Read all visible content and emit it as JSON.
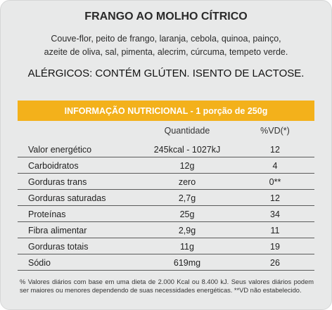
{
  "title": "FRANGO AO MOLHO CÍTRICO",
  "ingredients": [
    "Couve-flor, peito de frango, laranja, cebola, quinoa, painço,",
    "azeite de oliva, sal, pimenta, alecrim, cúrcuma, tempeto verde."
  ],
  "allergens": "ALÉRGICOS: CONTÉM GLÚTEN. ISENTO DE LACTOSE.",
  "nutrition": {
    "header": "INFORMAÇÃO NUTRICIONAL - 1 porção de 250g",
    "col_quantity": "Quantidade",
    "col_vd": "%VD(*)",
    "rows": [
      {
        "name": "Valor energético",
        "quantity": "245kcal - 1027kJ",
        "vd": "12"
      },
      {
        "name": "Carboidratos",
        "quantity": "12g",
        "vd": "4"
      },
      {
        "name": "Gorduras trans",
        "quantity": "zero",
        "vd": "0**"
      },
      {
        "name": "Gorduras saturadas",
        "quantity": "2,7g",
        "vd": "12"
      },
      {
        "name": "Proteínas",
        "quantity": "25g",
        "vd": "34"
      },
      {
        "name": "Fibra alimentar",
        "quantity": "2,9g",
        "vd": "11"
      },
      {
        "name": "Gorduras totais",
        "quantity": "11g",
        "vd": "19"
      },
      {
        "name": "Sódio",
        "quantity": "619mg",
        "vd": "26"
      }
    ]
  },
  "footnote": "% Valores diários com base em uma dieta de 2.000 Kcal ou 8.400 kJ. Seus valores diários podem ser maiores ou menores dependendo de suas necessidades energéticas. **VD não estabelecido.",
  "colors": {
    "card_background": "#e8e9e9",
    "header_band": "#f3b11b",
    "header_text": "#ffffff"
  }
}
